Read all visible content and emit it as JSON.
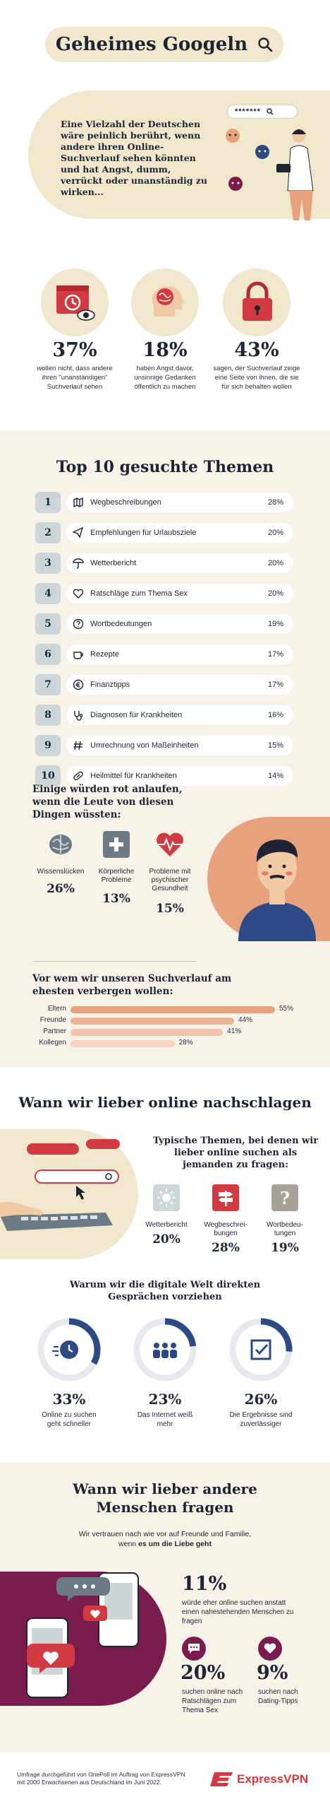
{
  "header": {
    "title": "Geheimes Googeln"
  },
  "intro": {
    "text": "Eine Vielzahl der Deutschen wäre peinlich berührt, wenn andere ihren Online-Suchverlauf sehen könnten und hat Angst, dumm, verrückt oder unanständig zu wirken...",
    "search_mask": "*******"
  },
  "stats": [
    {
      "value": "37%",
      "text": "wollen nicht, dass andere ihren \"unanständigen\" Suchverlauf sehen"
    },
    {
      "value": "18%",
      "text": "haben Angst davor, unsinnige Gedanken öffentlich zu machen"
    },
    {
      "value": "43%",
      "text": "sagen, der Suchverlauf zeige eine Seite von ihnen, die sie für sich behalten wollen"
    }
  ],
  "top10": {
    "title": "Top 10 gesuchte Themen",
    "items": [
      {
        "rank": "1",
        "label": "Wegbeschreibungen",
        "pct": "28%"
      },
      {
        "rank": "2",
        "label": "Empfehlungen für Urlaubsziele",
        "pct": "20%"
      },
      {
        "rank": "3",
        "label": "Wetterbericht",
        "pct": "20%"
      },
      {
        "rank": "4",
        "label": "Ratschläge zum Thema Sex",
        "pct": "20%"
      },
      {
        "rank": "5",
        "label": "Wortbedeutungen",
        "pct": "19%"
      },
      {
        "rank": "6",
        "label": "Rezepte",
        "pct": "17%"
      },
      {
        "rank": "7",
        "label": "Finanztipps",
        "pct": "17%"
      },
      {
        "rank": "8",
        "label": "Diagnosen für Krankheiten",
        "pct": "16%"
      },
      {
        "rank": "9",
        "label": "Umrechnung von Maßeinheiten",
        "pct": "15%"
      },
      {
        "rank": "10",
        "label": "Heilmittel für Krankheiten",
        "pct": "14%"
      }
    ]
  },
  "blush": {
    "title": "Einige würden rot anlaufen, wenn die Leute von diesen Dingen wüssten:",
    "items": [
      {
        "label": "Wissenslücken",
        "pct": "26%"
      },
      {
        "label": "Körperliche Probleme",
        "pct": "13%"
      },
      {
        "label": "Probleme mit psychischer Gesundheit",
        "pct": "15%"
      }
    ]
  },
  "hide": {
    "title": "Vor wem wir unseren Suchverlauf am ehesten verbergen wollen:",
    "bars": [
      {
        "label": "Eltern",
        "pct": "55%",
        "value": 55
      },
      {
        "label": "Freunde",
        "pct": "44%",
        "value": 44
      },
      {
        "label": "Partner",
        "pct": "41%",
        "value": 41
      },
      {
        "label": "Kollegen",
        "pct": "28%",
        "value": 28
      }
    ]
  },
  "online": {
    "title": "Wann wir lieber online nachschlagen",
    "subtitle": "Typische Themen, bei denen wir lieber online suchen als jemanden zu fragen:",
    "items": [
      {
        "label": "Wetterbericht",
        "pct": "20%"
      },
      {
        "label": "Wegbeschrei-bungen",
        "pct": "28%"
      },
      {
        "label": "Wortbedeu-tungen",
        "pct": "19%"
      }
    ],
    "digital_title": "Warum wir die digitale Welt direkten Gesprächen vorziehen",
    "donuts": [
      {
        "pct": "33%",
        "value": 33,
        "label": "Online zu suchen geht schneller"
      },
      {
        "pct": "23%",
        "value": 23,
        "label": "Das Internet weiß mehr"
      },
      {
        "pct": "26%",
        "value": 26,
        "label": "Die Ergebnisse sind zuverlässiger"
      }
    ]
  },
  "people": {
    "title": "Wann wir lieber andere Menschen fragen",
    "subtitle": "Wir vertrauen nach wie vor auf Freunde und Familie, wenn",
    "subtitle_bold": "es um die Liebe geht",
    "main_pct": "11%",
    "main_text": "würde eher online suchen anstatt einen nahestehenden Menschen zu fragen",
    "items": [
      {
        "pct": "20%",
        "text": "suchen online nach Ratschlägen zum Thema Sex"
      },
      {
        "pct": "9%",
        "text": "suchen nach Dating-Tipps"
      }
    ]
  },
  "footer": {
    "source": "Umfrage durchgeführt von OnePoll im Auftrag von ExpressVPN mit 2000 Erwachsenen aus Deutschland im Juni 2022.",
    "brand": "ExpressVPN"
  },
  "colors": {
    "navy": "#2d4a86",
    "coral": "#e7a27d",
    "red": "#d13a41",
    "cream": "#f1e7cd",
    "plum": "#7a1d4e"
  }
}
